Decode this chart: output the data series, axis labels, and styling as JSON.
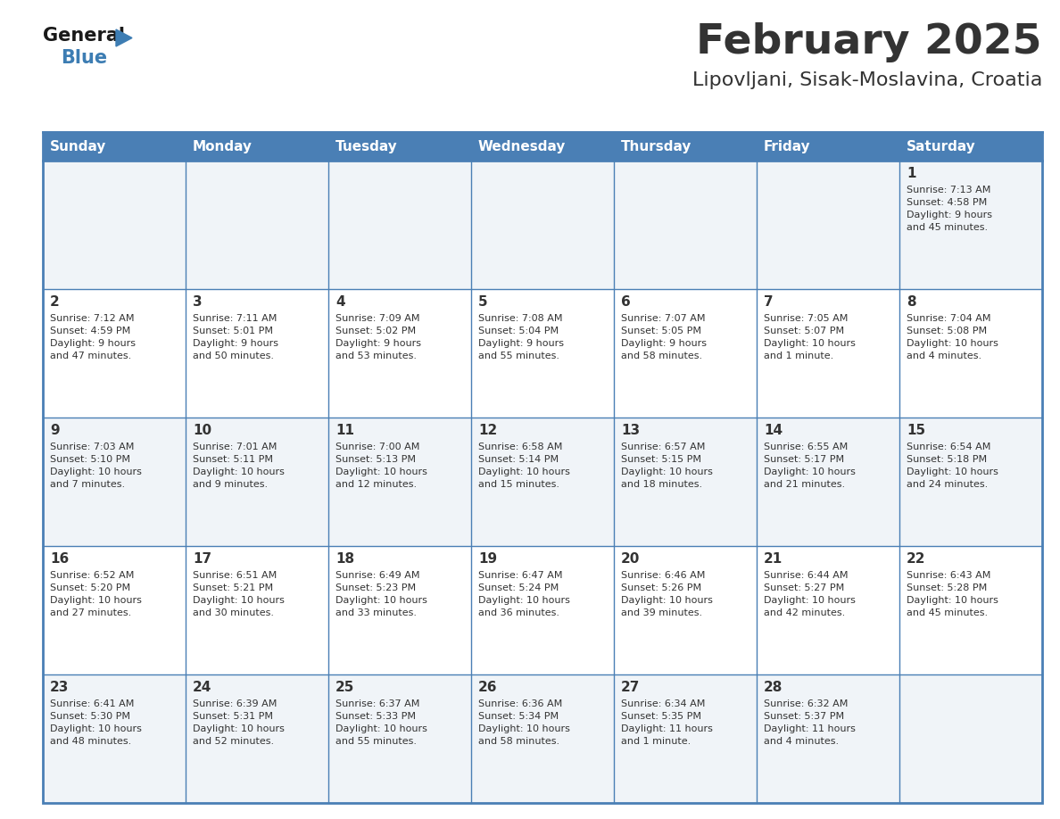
{
  "title": "February 2025",
  "subtitle": "Lipovljani, Sisak-Moslavina, Croatia",
  "days_of_week": [
    "Sunday",
    "Monday",
    "Tuesday",
    "Wednesday",
    "Thursday",
    "Friday",
    "Saturday"
  ],
  "header_bg": "#4A7FB5",
  "header_text_color": "#FFFFFF",
  "row_bg_light": "#F0F4F8",
  "row_bg_white": "#FFFFFF",
  "border_color": "#4A7FB5",
  "text_color": "#333333",
  "calendar_data": [
    [
      null,
      null,
      null,
      null,
      null,
      null,
      {
        "day": 1,
        "sunrise": "7:13 AM",
        "sunset": "4:58 PM",
        "daylight": "9 hours\nand 45 minutes."
      }
    ],
    [
      {
        "day": 2,
        "sunrise": "7:12 AM",
        "sunset": "4:59 PM",
        "daylight": "9 hours\nand 47 minutes."
      },
      {
        "day": 3,
        "sunrise": "7:11 AM",
        "sunset": "5:01 PM",
        "daylight": "9 hours\nand 50 minutes."
      },
      {
        "day": 4,
        "sunrise": "7:09 AM",
        "sunset": "5:02 PM",
        "daylight": "9 hours\nand 53 minutes."
      },
      {
        "day": 5,
        "sunrise": "7:08 AM",
        "sunset": "5:04 PM",
        "daylight": "9 hours\nand 55 minutes."
      },
      {
        "day": 6,
        "sunrise": "7:07 AM",
        "sunset": "5:05 PM",
        "daylight": "9 hours\nand 58 minutes."
      },
      {
        "day": 7,
        "sunrise": "7:05 AM",
        "sunset": "5:07 PM",
        "daylight": "10 hours\nand 1 minute."
      },
      {
        "day": 8,
        "sunrise": "7:04 AM",
        "sunset": "5:08 PM",
        "daylight": "10 hours\nand 4 minutes."
      }
    ],
    [
      {
        "day": 9,
        "sunrise": "7:03 AM",
        "sunset": "5:10 PM",
        "daylight": "10 hours\nand 7 minutes."
      },
      {
        "day": 10,
        "sunrise": "7:01 AM",
        "sunset": "5:11 PM",
        "daylight": "10 hours\nand 9 minutes."
      },
      {
        "day": 11,
        "sunrise": "7:00 AM",
        "sunset": "5:13 PM",
        "daylight": "10 hours\nand 12 minutes."
      },
      {
        "day": 12,
        "sunrise": "6:58 AM",
        "sunset": "5:14 PM",
        "daylight": "10 hours\nand 15 minutes."
      },
      {
        "day": 13,
        "sunrise": "6:57 AM",
        "sunset": "5:15 PM",
        "daylight": "10 hours\nand 18 minutes."
      },
      {
        "day": 14,
        "sunrise": "6:55 AM",
        "sunset": "5:17 PM",
        "daylight": "10 hours\nand 21 minutes."
      },
      {
        "day": 15,
        "sunrise": "6:54 AM",
        "sunset": "5:18 PM",
        "daylight": "10 hours\nand 24 minutes."
      }
    ],
    [
      {
        "day": 16,
        "sunrise": "6:52 AM",
        "sunset": "5:20 PM",
        "daylight": "10 hours\nand 27 minutes."
      },
      {
        "day": 17,
        "sunrise": "6:51 AM",
        "sunset": "5:21 PM",
        "daylight": "10 hours\nand 30 minutes."
      },
      {
        "day": 18,
        "sunrise": "6:49 AM",
        "sunset": "5:23 PM",
        "daylight": "10 hours\nand 33 minutes."
      },
      {
        "day": 19,
        "sunrise": "6:47 AM",
        "sunset": "5:24 PM",
        "daylight": "10 hours\nand 36 minutes."
      },
      {
        "day": 20,
        "sunrise": "6:46 AM",
        "sunset": "5:26 PM",
        "daylight": "10 hours\nand 39 minutes."
      },
      {
        "day": 21,
        "sunrise": "6:44 AM",
        "sunset": "5:27 PM",
        "daylight": "10 hours\nand 42 minutes."
      },
      {
        "day": 22,
        "sunrise": "6:43 AM",
        "sunset": "5:28 PM",
        "daylight": "10 hours\nand 45 minutes."
      }
    ],
    [
      {
        "day": 23,
        "sunrise": "6:41 AM",
        "sunset": "5:30 PM",
        "daylight": "10 hours\nand 48 minutes."
      },
      {
        "day": 24,
        "sunrise": "6:39 AM",
        "sunset": "5:31 PM",
        "daylight": "10 hours\nand 52 minutes."
      },
      {
        "day": 25,
        "sunrise": "6:37 AM",
        "sunset": "5:33 PM",
        "daylight": "10 hours\nand 55 minutes."
      },
      {
        "day": 26,
        "sunrise": "6:36 AM",
        "sunset": "5:34 PM",
        "daylight": "10 hours\nand 58 minutes."
      },
      {
        "day": 27,
        "sunrise": "6:34 AM",
        "sunset": "5:35 PM",
        "daylight": "11 hours\nand 1 minute."
      },
      {
        "day": 28,
        "sunrise": "6:32 AM",
        "sunset": "5:37 PM",
        "daylight": "11 hours\nand 4 minutes."
      },
      null
    ]
  ],
  "fig_width": 11.88,
  "fig_height": 9.18,
  "dpi": 100,
  "title_fontsize": 34,
  "subtitle_fontsize": 16,
  "header_fontsize": 11,
  "day_num_fontsize": 11,
  "cell_text_fontsize": 8
}
